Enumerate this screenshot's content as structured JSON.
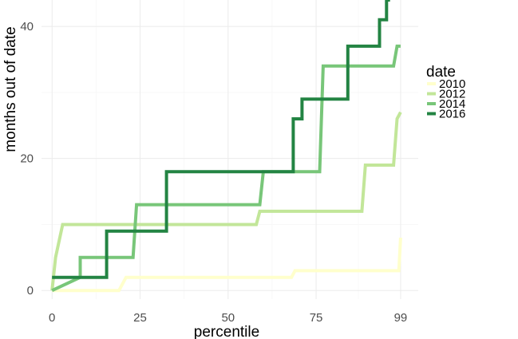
{
  "chart_data": {
    "type": "line",
    "xlabel": "percentile",
    "ylabel": "months out of date",
    "xlim": [
      -3,
      104
    ],
    "ylim": [
      -1.3,
      44
    ],
    "x_ticks": [
      0,
      25,
      50,
      75,
      99
    ],
    "x_tick_labels": [
      "0",
      "25",
      "50",
      "75",
      "99"
    ],
    "x_minor_ticks": [
      12.5,
      37.5,
      62.5,
      87
    ],
    "y_ticks": [
      0,
      20,
      40
    ],
    "y_tick_labels": [
      "0",
      "20",
      "40"
    ],
    "y_minor_ticks": [
      10,
      30
    ],
    "grid": true,
    "legend": {
      "title": "date",
      "position": "right"
    },
    "series": [
      {
        "name": "2010",
        "color": "#ffffcc",
        "x": [
          0,
          19,
          21,
          68,
          69,
          98.5,
          99
        ],
        "y": [
          0,
          0,
          2,
          2,
          3,
          3,
          8
        ]
      },
      {
        "name": "2012",
        "color": "#c2e699",
        "x": [
          0,
          1,
          3,
          58,
          59,
          88,
          89,
          97,
          98,
          99
        ],
        "y": [
          0,
          5,
          10,
          10,
          12,
          12,
          19,
          19,
          26,
          27
        ]
      },
      {
        "name": "2014",
        "color": "#78c679",
        "x": [
          0,
          8,
          8,
          23,
          24,
          59,
          60,
          76,
          77,
          97,
          98,
          99
        ],
        "y": [
          0,
          2,
          5,
          5,
          13,
          13,
          18,
          18,
          34,
          34,
          37,
          37
        ]
      },
      {
        "name": "2016",
        "color": "#238443",
        "x": [
          0,
          15.5,
          15.5,
          23.5,
          23.5,
          32.5,
          32.5,
          68.5,
          68.5,
          71,
          71,
          84,
          84,
          93,
          93,
          95,
          95,
          96,
          96
        ],
        "y": [
          2,
          2,
          9,
          9,
          9,
          9,
          18,
          18,
          26,
          26,
          29,
          29,
          37,
          37,
          41,
          41,
          44,
          44,
          44
        ]
      }
    ]
  }
}
